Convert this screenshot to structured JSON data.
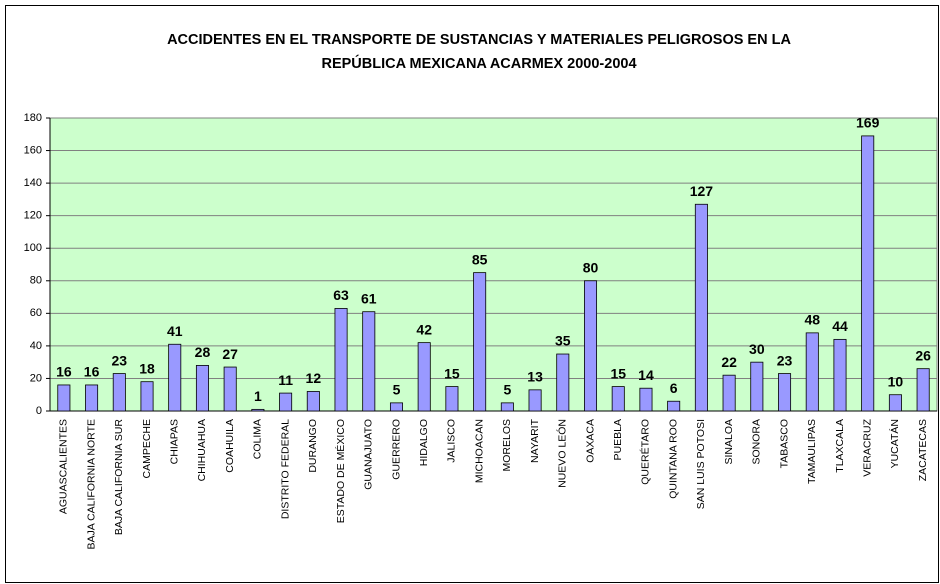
{
  "chart_data": {
    "type": "bar",
    "title": [
      "ACCIDENTES EN EL TRANSPORTE DE SUSTANCIAS Y MATERIALES PELIGROSOS EN LA",
      "REPÚBLICA MEXICANA ACARMEX 2000-2004"
    ],
    "categories": [
      "AGUASCALIENTES",
      "BAJA CALIFORNIA NORTE",
      "BAJA CALIFORNIA SUR",
      "CAMPECHE",
      "CHIAPAS",
      "CHIHUAHUA",
      "COAHUILA",
      "COLIMA",
      "DISTRITO FEDERAL",
      "DURANGO",
      "ESTADO DE MÉXICO",
      "GUANAJUATO",
      "GUERRERO",
      "HIDALGO",
      "JALISCO",
      "MICHOACAN",
      "MORELOS",
      "NAYARIT",
      "NUEVO LEÓN",
      "OAXACA",
      "PUEBLA",
      "QUERÉTARO",
      "QUINTANA ROO",
      "SAN LUIS POTOSI",
      "SINALOA",
      "SONORA",
      "TABASCO",
      "TAMAULIPAS",
      "TLAXCALA",
      "VERACRUZ",
      "YUCATÁN",
      "ZACATECAS"
    ],
    "values": [
      16,
      16,
      23,
      18,
      41,
      28,
      27,
      1,
      11,
      12,
      63,
      61,
      5,
      42,
      15,
      85,
      5,
      13,
      35,
      80,
      15,
      14,
      6,
      127,
      22,
      30,
      23,
      48,
      44,
      169,
      10,
      26
    ],
    "color": "#9999ff",
    "ylim": [
      0,
      180
    ],
    "yticks": [
      0,
      20,
      40,
      60,
      80,
      100,
      120,
      140,
      160,
      180
    ],
    "grid": true
  }
}
